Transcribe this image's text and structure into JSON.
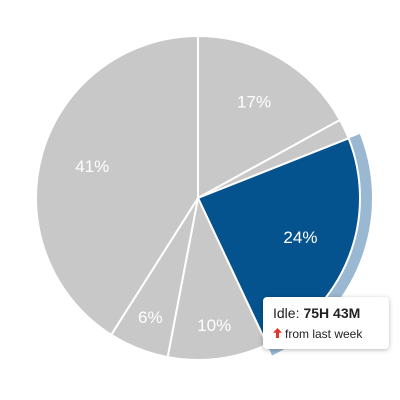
{
  "colors": {
    "slice_default": "#c8c8c9",
    "slice_selected": "#04538f",
    "selected_ring": "#9ab8d1",
    "slice_border": "#ffffff",
    "trend_up": "#e0352b"
  },
  "chart_data": {
    "type": "pie",
    "start_angle_deg": 0,
    "direction": "clockwise",
    "selected_index": 2,
    "slices": [
      {
        "value": 17,
        "label": "17%"
      },
      {
        "value": 2,
        "label": ""
      },
      {
        "value": 24,
        "label": "24%"
      },
      {
        "value": 10,
        "label": "10%"
      },
      {
        "value": 6,
        "label": "6%"
      },
      {
        "value": 41,
        "label": "41%"
      }
    ]
  },
  "tooltip": {
    "label": "Idle:",
    "value": "75H 43M",
    "trend_icon": "arrow-up-icon",
    "trend_text": "from last week"
  }
}
